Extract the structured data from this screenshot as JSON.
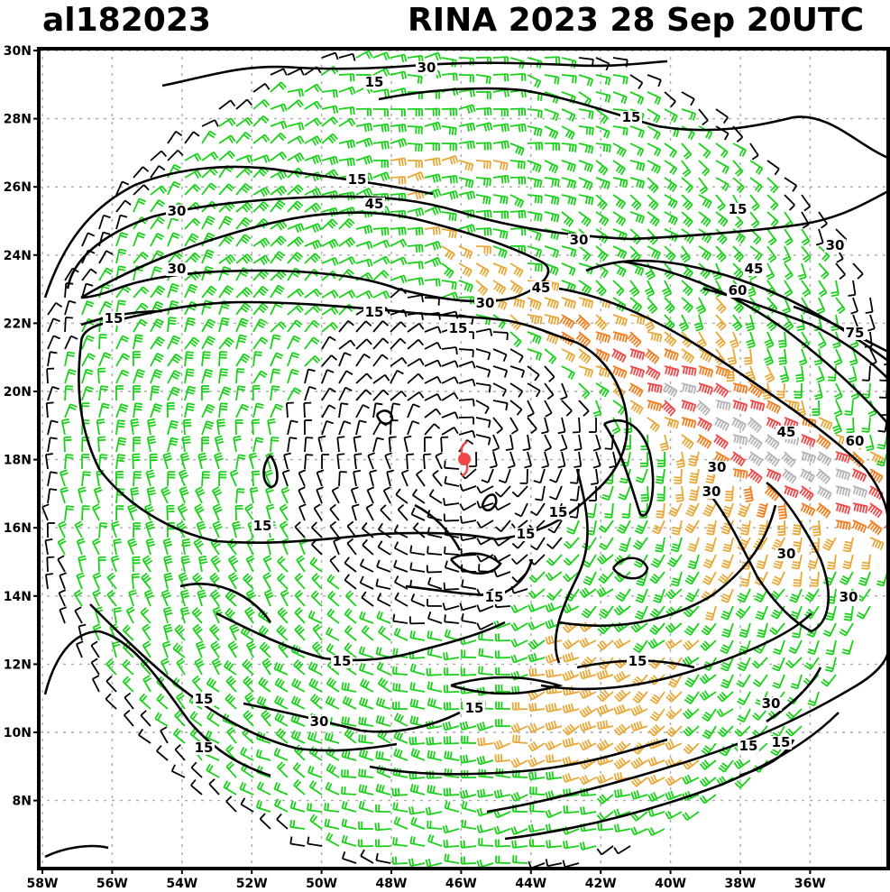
{
  "header": {
    "storm_id": "al182023",
    "storm_title": "RINA 2023 28 Sep 20UTC"
  },
  "axes": {
    "lat_labels": [
      "30N",
      "28N",
      "26N",
      "24N",
      "22N",
      "20N",
      "18N",
      "16N",
      "14N",
      "12N",
      "10N",
      "8N"
    ],
    "lon_labels": [
      "58W",
      "56W",
      "54W",
      "52W",
      "50W",
      "48W",
      "46W",
      "44W",
      "42W",
      "40W",
      "38W",
      "36W"
    ]
  },
  "contour_labels": [
    {
      "text": "30",
      "id": "c1"
    },
    {
      "text": "15",
      "id": "c2"
    },
    {
      "text": "15",
      "id": "c3"
    },
    {
      "text": "15",
      "id": "c4"
    },
    {
      "text": "30",
      "id": "c5"
    },
    {
      "text": "45",
      "id": "c6"
    },
    {
      "text": "30",
      "id": "c7"
    },
    {
      "text": "15",
      "id": "c8"
    },
    {
      "text": "30",
      "id": "c9"
    },
    {
      "text": "30",
      "id": "c10"
    },
    {
      "text": "45",
      "id": "c11"
    },
    {
      "text": "45",
      "id": "c12"
    },
    {
      "text": "60",
      "id": "c13"
    },
    {
      "text": "30",
      "id": "c14"
    },
    {
      "text": "15",
      "id": "c15"
    },
    {
      "text": "15",
      "id": "c16"
    },
    {
      "text": "15",
      "id": "c17"
    },
    {
      "text": "75",
      "id": "c18"
    },
    {
      "text": "45",
      "id": "c19"
    },
    {
      "text": "60",
      "id": "c20"
    },
    {
      "text": "30",
      "id": "c21"
    },
    {
      "text": "30",
      "id": "c22"
    },
    {
      "text": "15",
      "id": "c23"
    },
    {
      "text": "15",
      "id": "c24"
    },
    {
      "text": "15",
      "id": "c25"
    },
    {
      "text": "30",
      "id": "c26"
    },
    {
      "text": "30",
      "id": "c27"
    },
    {
      "text": "15",
      "id": "c28"
    },
    {
      "text": "15",
      "id": "c29"
    },
    {
      "text": "15",
      "id": "c30"
    },
    {
      "text": "15",
      "id": "c31"
    },
    {
      "text": "15",
      "id": "c32"
    },
    {
      "text": "30",
      "id": "c33"
    },
    {
      "text": "30",
      "id": "c34"
    },
    {
      "text": "15",
      "id": "c35"
    },
    {
      "text": "15",
      "id": "c36"
    },
    {
      "text": "15",
      "id": "c37"
    }
  ],
  "wind_speed_colors": {
    "below_15": "#000000",
    "15_to_30": "#1ad11a",
    "30_to_45": "#e8a838",
    "45_to_60": "#f07f20",
    "60_to_75": "#f04848",
    "above_75": "#b4b4b4"
  },
  "storm_symbol_color": "#f04848",
  "frame_color": "#000000",
  "grid_color": "#aaaaaa"
}
